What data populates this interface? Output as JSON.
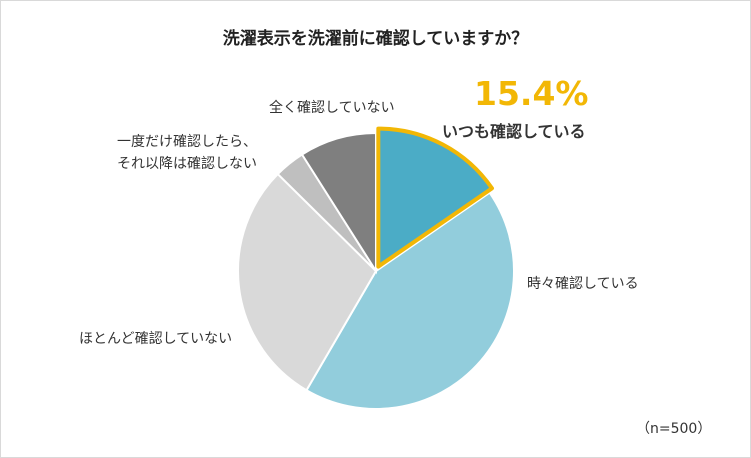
{
  "chart_data": {
    "type": "pie",
    "title": "洗濯表示を洗濯前に確認していますか？",
    "slices": [
      {
        "label": "いつも確認している",
        "value": 15.4,
        "color": "#4bacc6"
      },
      {
        "label": "時々確認している",
        "value": 43,
        "color": "#92cddc"
      },
      {
        "label": "ほとんど確認していない",
        "value": 29,
        "color": "#d9d9d9"
      },
      {
        "label": "一度だけ確認したら、それ以降は確認しない",
        "value": 3.6,
        "color": "#bfbfbf"
      },
      {
        "label": "全く確認していない",
        "value": 9,
        "color": "#7f7f7f"
      }
    ],
    "highlight": {
      "value_label": "15.4%",
      "label": "いつも確認している",
      "outline_color": "#f2b705"
    },
    "annotations": {
      "sometimes": "時々確認している",
      "rarely": "ほとんど確認していない",
      "once_line1": "一度だけ確認したら、",
      "once_line2": "それ以降は確認しない",
      "never": "全く確認していない"
    },
    "note": "（n=500）"
  }
}
